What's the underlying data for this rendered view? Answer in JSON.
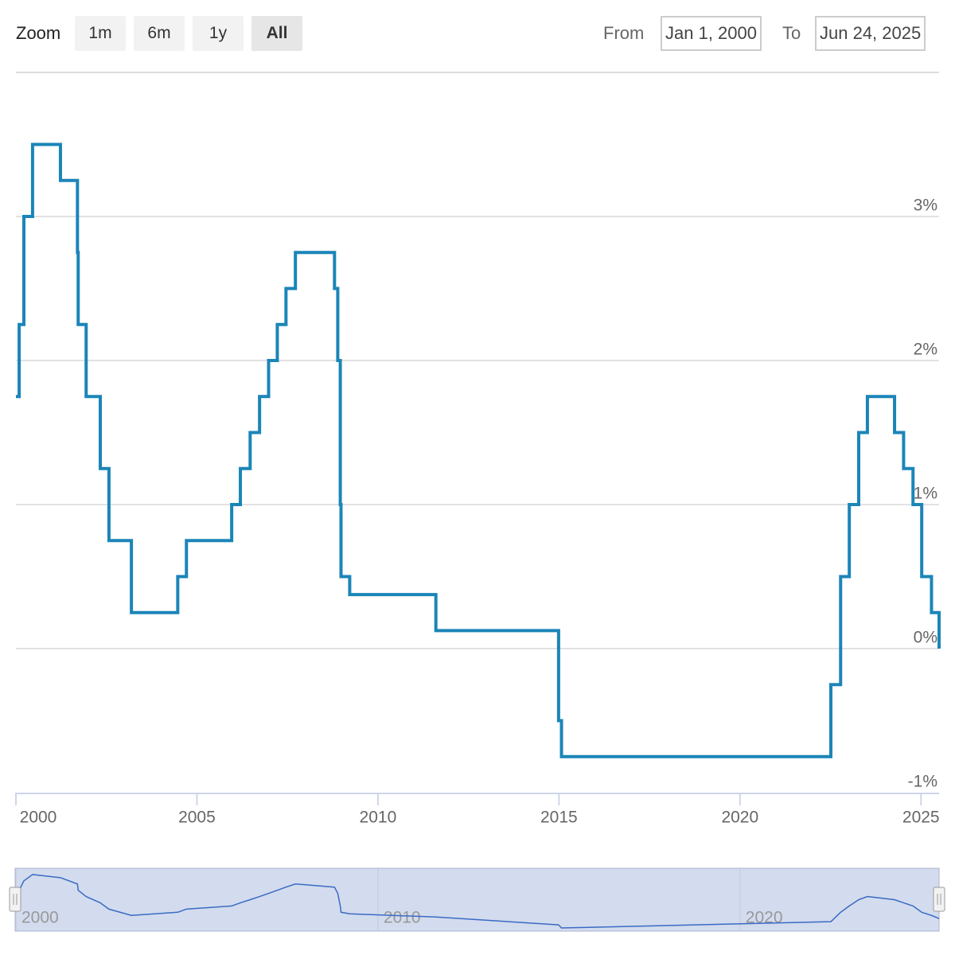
{
  "range_selector": {
    "zoom_label": "Zoom",
    "buttons": [
      "1m",
      "6m",
      "1y",
      "All"
    ],
    "selected": 3,
    "from_label": "From",
    "from": "Jan 1, 2000",
    "to_label": "To",
    "to": "Jun 24, 2025"
  },
  "chart_data": {
    "type": "line",
    "step": true,
    "color": "#1b85b8",
    "x": [
      2000.0,
      2000.09,
      2000.22,
      2000.46,
      2001.23,
      2001.7,
      2001.72,
      2001.94,
      2002.33,
      2002.57,
      2003.19,
      2004.47,
      2004.71,
      2005.96,
      2006.2,
      2006.47,
      2006.73,
      2006.98,
      2007.22,
      2007.46,
      2007.72,
      2008.8,
      2008.89,
      2008.96,
      2008.98,
      2009.22,
      2011.6,
      2014.99,
      2015.07,
      2022.51,
      2022.78,
      2023.02,
      2023.28,
      2023.52,
      2024.27,
      2024.52,
      2024.78,
      2025.02,
      2025.29,
      2025.5
    ],
    "values": [
      1.75,
      2.25,
      3.0,
      3.5,
      3.25,
      2.75,
      2.25,
      1.75,
      1.25,
      0.75,
      0.25,
      0.5,
      0.75,
      1.0,
      1.25,
      1.5,
      1.75,
      2.0,
      2.25,
      2.5,
      2.75,
      2.5,
      2.0,
      1.0,
      0.5,
      0.375,
      0.125,
      -0.5,
      -0.75,
      -0.25,
      0.5,
      1.0,
      1.5,
      1.75,
      1.5,
      1.25,
      1.0,
      0.5,
      0.25,
      0
    ],
    "xlim": [
      2000,
      2025.5
    ],
    "xticks": [
      2000,
      2005,
      2010,
      2015,
      2020,
      2025
    ],
    "ylim": [
      -1,
      4
    ],
    "yticks": [
      {
        "value": -1,
        "label": "-1%"
      },
      {
        "value": 0,
        "label": "0%"
      },
      {
        "value": 1,
        "label": "1%"
      },
      {
        "value": 2,
        "label": "2%"
      },
      {
        "value": 3,
        "label": "3%"
      }
    ],
    "grid": true,
    "navigator": {
      "color": "#3a6bc4",
      "xticks": [
        2000,
        2010,
        2020
      ]
    }
  }
}
